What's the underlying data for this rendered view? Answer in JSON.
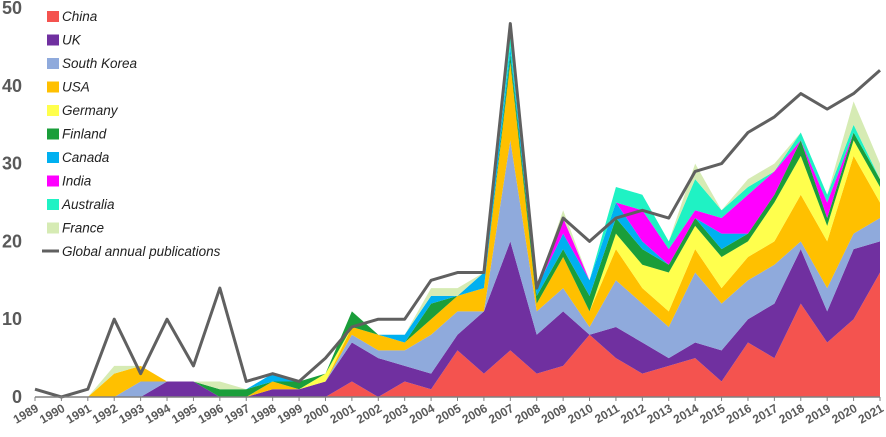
{
  "chart_data": {
    "type": "area",
    "stacked": true,
    "x": [
      1989,
      1990,
      1991,
      1992,
      1993,
      1994,
      1995,
      1996,
      1997,
      1998,
      1999,
      2000,
      2001,
      2002,
      2003,
      2004,
      2005,
      2006,
      2007,
      2008,
      2009,
      2010,
      2011,
      2012,
      2013,
      2014,
      2015,
      2016,
      2017,
      2018,
      2019,
      2020,
      2021
    ],
    "ylim": [
      0,
      50
    ],
    "yticks": [
      0,
      10,
      20,
      30,
      40,
      50
    ],
    "grid": false,
    "legend_position": "top-left",
    "series": [
      {
        "name": "China",
        "color": "#f4534f",
        "values": [
          0,
          0,
          0,
          0,
          0,
          0,
          0,
          0,
          0,
          0,
          0,
          0,
          2,
          0,
          2,
          1,
          6,
          3,
          6,
          3,
          4,
          8,
          5,
          3,
          4,
          5,
          2,
          7,
          5,
          12,
          7,
          10,
          16
        ]
      },
      {
        "name": "UK",
        "color": "#7030a0",
        "values": [
          0,
          0,
          0,
          0,
          0,
          2,
          2,
          0,
          0,
          1,
          1,
          2,
          5,
          5,
          2,
          2,
          2,
          8,
          14,
          5,
          7,
          0,
          4,
          4,
          1,
          2,
          4,
          3,
          7,
          7,
          4,
          9,
          4
        ]
      },
      {
        "name": "South Korea",
        "color": "#8faadc",
        "values": [
          0,
          0,
          0,
          0,
          2,
          0,
          0,
          0,
          0,
          0,
          0,
          0,
          1,
          1,
          2,
          5,
          3,
          0,
          13,
          3,
          3,
          1,
          6,
          5,
          4,
          9,
          6,
          5,
          5,
          1,
          3,
          2,
          3
        ]
      },
      {
        "name": "USA",
        "color": "#ffc000",
        "values": [
          0,
          0,
          0,
          3,
          2,
          0,
          0,
          0,
          0,
          1,
          0,
          0,
          1,
          2,
          1,
          2,
          2,
          3,
          10,
          1,
          4,
          2,
          4,
          2,
          2,
          3,
          2,
          3,
          3,
          6,
          6,
          10,
          2
        ]
      },
      {
        "name": "Germany",
        "color": "#ffff4d",
        "values": [
          0,
          0,
          0,
          0,
          0,
          0,
          0,
          0,
          0,
          0,
          0,
          1,
          0,
          0,
          0,
          0,
          0,
          0,
          0,
          0,
          0,
          0,
          2,
          3,
          5,
          3,
          4,
          2,
          5,
          5,
          2,
          2,
          2
        ]
      },
      {
        "name": "Finland",
        "color": "#1a9e3a",
        "values": [
          0,
          0,
          0,
          0,
          0,
          0,
          0,
          1,
          1,
          0,
          1,
          0,
          2,
          0,
          0,
          2,
          0,
          0,
          1,
          1,
          1,
          2,
          2,
          2,
          1,
          1,
          1,
          1,
          1,
          2,
          1,
          1,
          1
        ]
      },
      {
        "name": "Canada",
        "color": "#00b0f0",
        "values": [
          0,
          0,
          0,
          0,
          0,
          0,
          0,
          0,
          0,
          1,
          0,
          0,
          0,
          0,
          1,
          1,
          0,
          2,
          1,
          1,
          2,
          2,
          2,
          1,
          0,
          0,
          2,
          0,
          0,
          0,
          0,
          0,
          0
        ]
      },
      {
        "name": "India",
        "color": "#ff00ff",
        "values": [
          0,
          0,
          0,
          0,
          0,
          0,
          0,
          0,
          0,
          0,
          0,
          0,
          0,
          0,
          0,
          0,
          0,
          0,
          0,
          0,
          2,
          0,
          0,
          4,
          2,
          1,
          2,
          5,
          3,
          0,
          2,
          0,
          0
        ]
      },
      {
        "name": "Australia",
        "color": "#1ff2c4",
        "values": [
          0,
          0,
          0,
          0,
          0,
          0,
          0,
          0,
          0,
          0,
          0,
          0,
          0,
          0,
          0,
          0,
          0,
          0,
          2,
          0,
          0,
          0,
          2,
          2,
          1,
          4,
          1,
          1,
          0,
          1,
          1,
          1,
          0
        ]
      },
      {
        "name": "France",
        "color": "#d6ebb4",
        "values": [
          0,
          0,
          0,
          1,
          0,
          0,
          0,
          1,
          0,
          0,
          0,
          0,
          0,
          0,
          0,
          1,
          1,
          0,
          0,
          0,
          1,
          0,
          0,
          0,
          0,
          2,
          0,
          1,
          1,
          0,
          0,
          3,
          2
        ]
      }
    ],
    "line": {
      "name": "Global annual publications",
      "color": "#606060",
      "values": [
        1,
        0,
        1,
        10,
        3,
        10,
        4,
        14,
        2,
        3,
        2,
        5,
        9,
        10,
        10,
        15,
        16,
        16,
        48,
        14,
        23,
        20,
        23,
        24,
        23,
        29,
        30,
        34,
        36,
        39,
        37,
        39,
        42
      ]
    }
  }
}
